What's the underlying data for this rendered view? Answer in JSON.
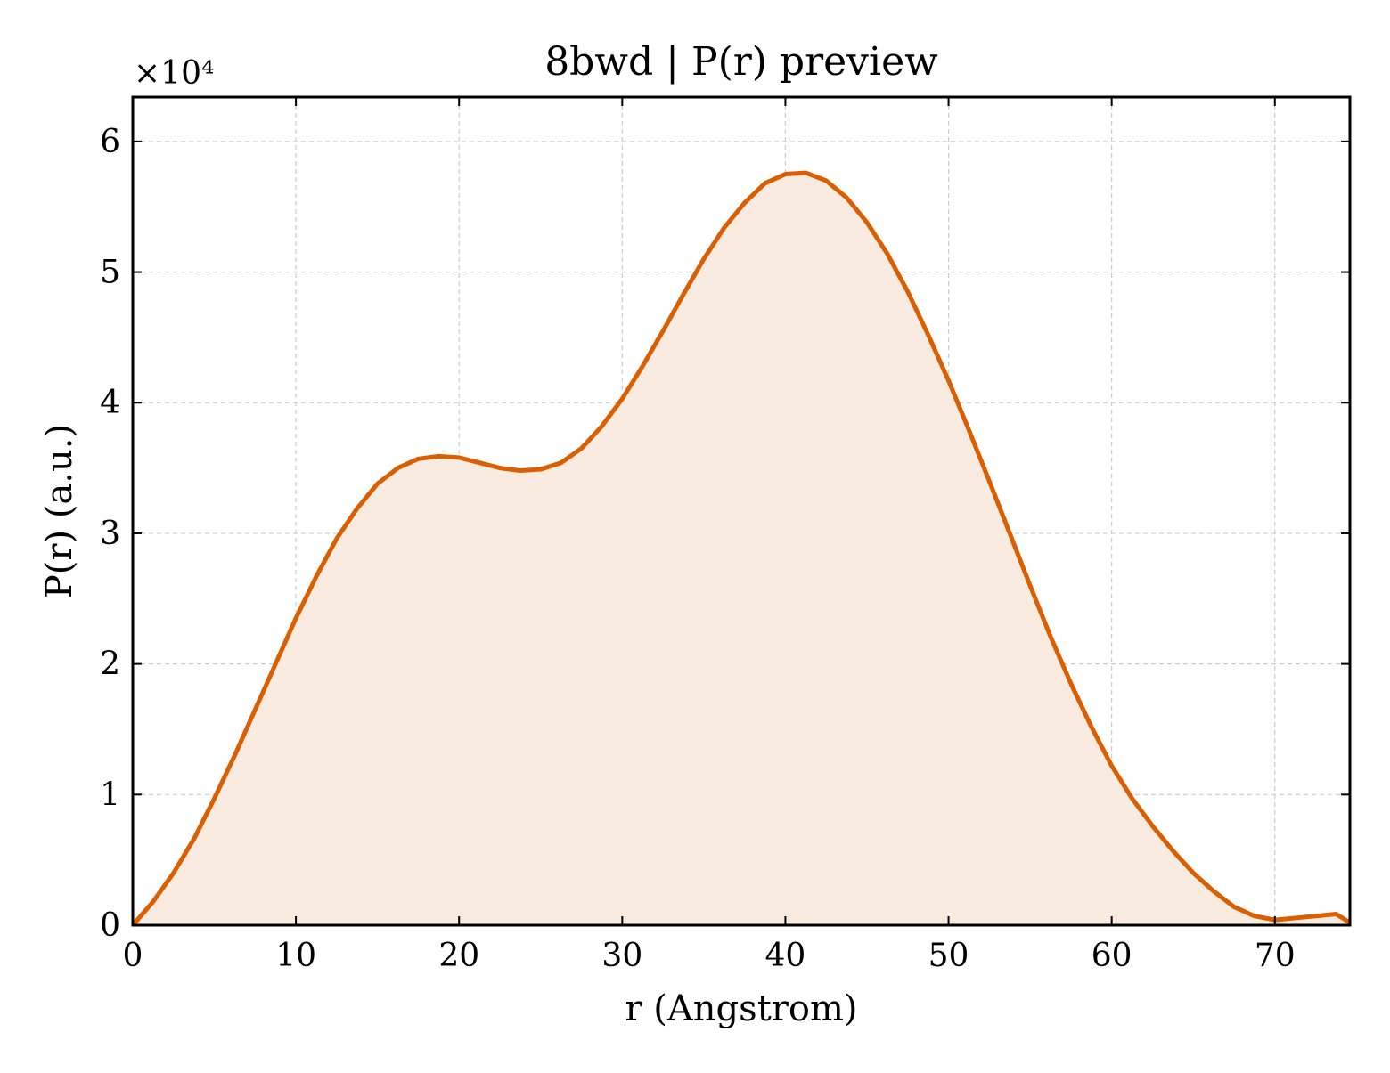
{
  "chart_data": {
    "type": "area",
    "title": "8bwd | P(r) preview",
    "xlabel": "r (Angstrom)",
    "ylabel": "P(r) (a.u.)",
    "y_offset_label": "×10⁴",
    "y_scale": 10000,
    "xlim": [
      0,
      74.6
    ],
    "ylim": [
      0,
      63400
    ],
    "xticks": [
      0,
      10,
      20,
      30,
      40,
      50,
      60,
      70
    ],
    "yticks": [
      0,
      10000,
      20000,
      30000,
      40000,
      50000,
      60000
    ],
    "ytick_labels": [
      "0",
      "1",
      "2",
      "3",
      "4",
      "5",
      "6"
    ],
    "grid": true,
    "line_color": "#d95f02",
    "fill_color": "#f9ebe0",
    "series": [
      {
        "x": [
          0,
          1.25,
          2.5,
          3.75,
          5,
          6.25,
          7.5,
          8.75,
          10,
          11.25,
          12.5,
          13.75,
          15,
          16.25,
          17.5,
          18.75,
          20,
          21.25,
          22.5,
          23.75,
          25,
          26.25,
          27.5,
          28.75,
          30,
          31.25,
          32.5,
          33.75,
          35,
          36.25,
          37.5,
          38.75,
          40,
          41.25,
          42.5,
          43.75,
          45,
          46.25,
          47.5,
          48.75,
          50,
          51.25,
          52.5,
          53.75,
          55,
          56.25,
          57.5,
          58.75,
          60,
          61.25,
          62.5,
          63.75,
          65,
          66.25,
          67.5,
          68.75,
          70,
          71.25,
          72.5,
          73.75,
          74.6
        ],
        "y": [
          0,
          1800,
          4000,
          6600,
          9700,
          13000,
          16500,
          20000,
          23500,
          26700,
          29600,
          31900,
          33800,
          35000,
          35700,
          35900,
          35800,
          35400,
          35000,
          34800,
          34900,
          35400,
          36500,
          38200,
          40300,
          42800,
          45500,
          48300,
          51000,
          53400,
          55300,
          56800,
          57500,
          57600,
          57000,
          55700,
          53800,
          51400,
          48500,
          45200,
          41700,
          37900,
          34000,
          30000,
          26000,
          22100,
          18500,
          15200,
          12200,
          9700,
          7600,
          5700,
          4000,
          2600,
          1400,
          700,
          400,
          550,
          700,
          850,
          200
        ]
      }
    ]
  }
}
